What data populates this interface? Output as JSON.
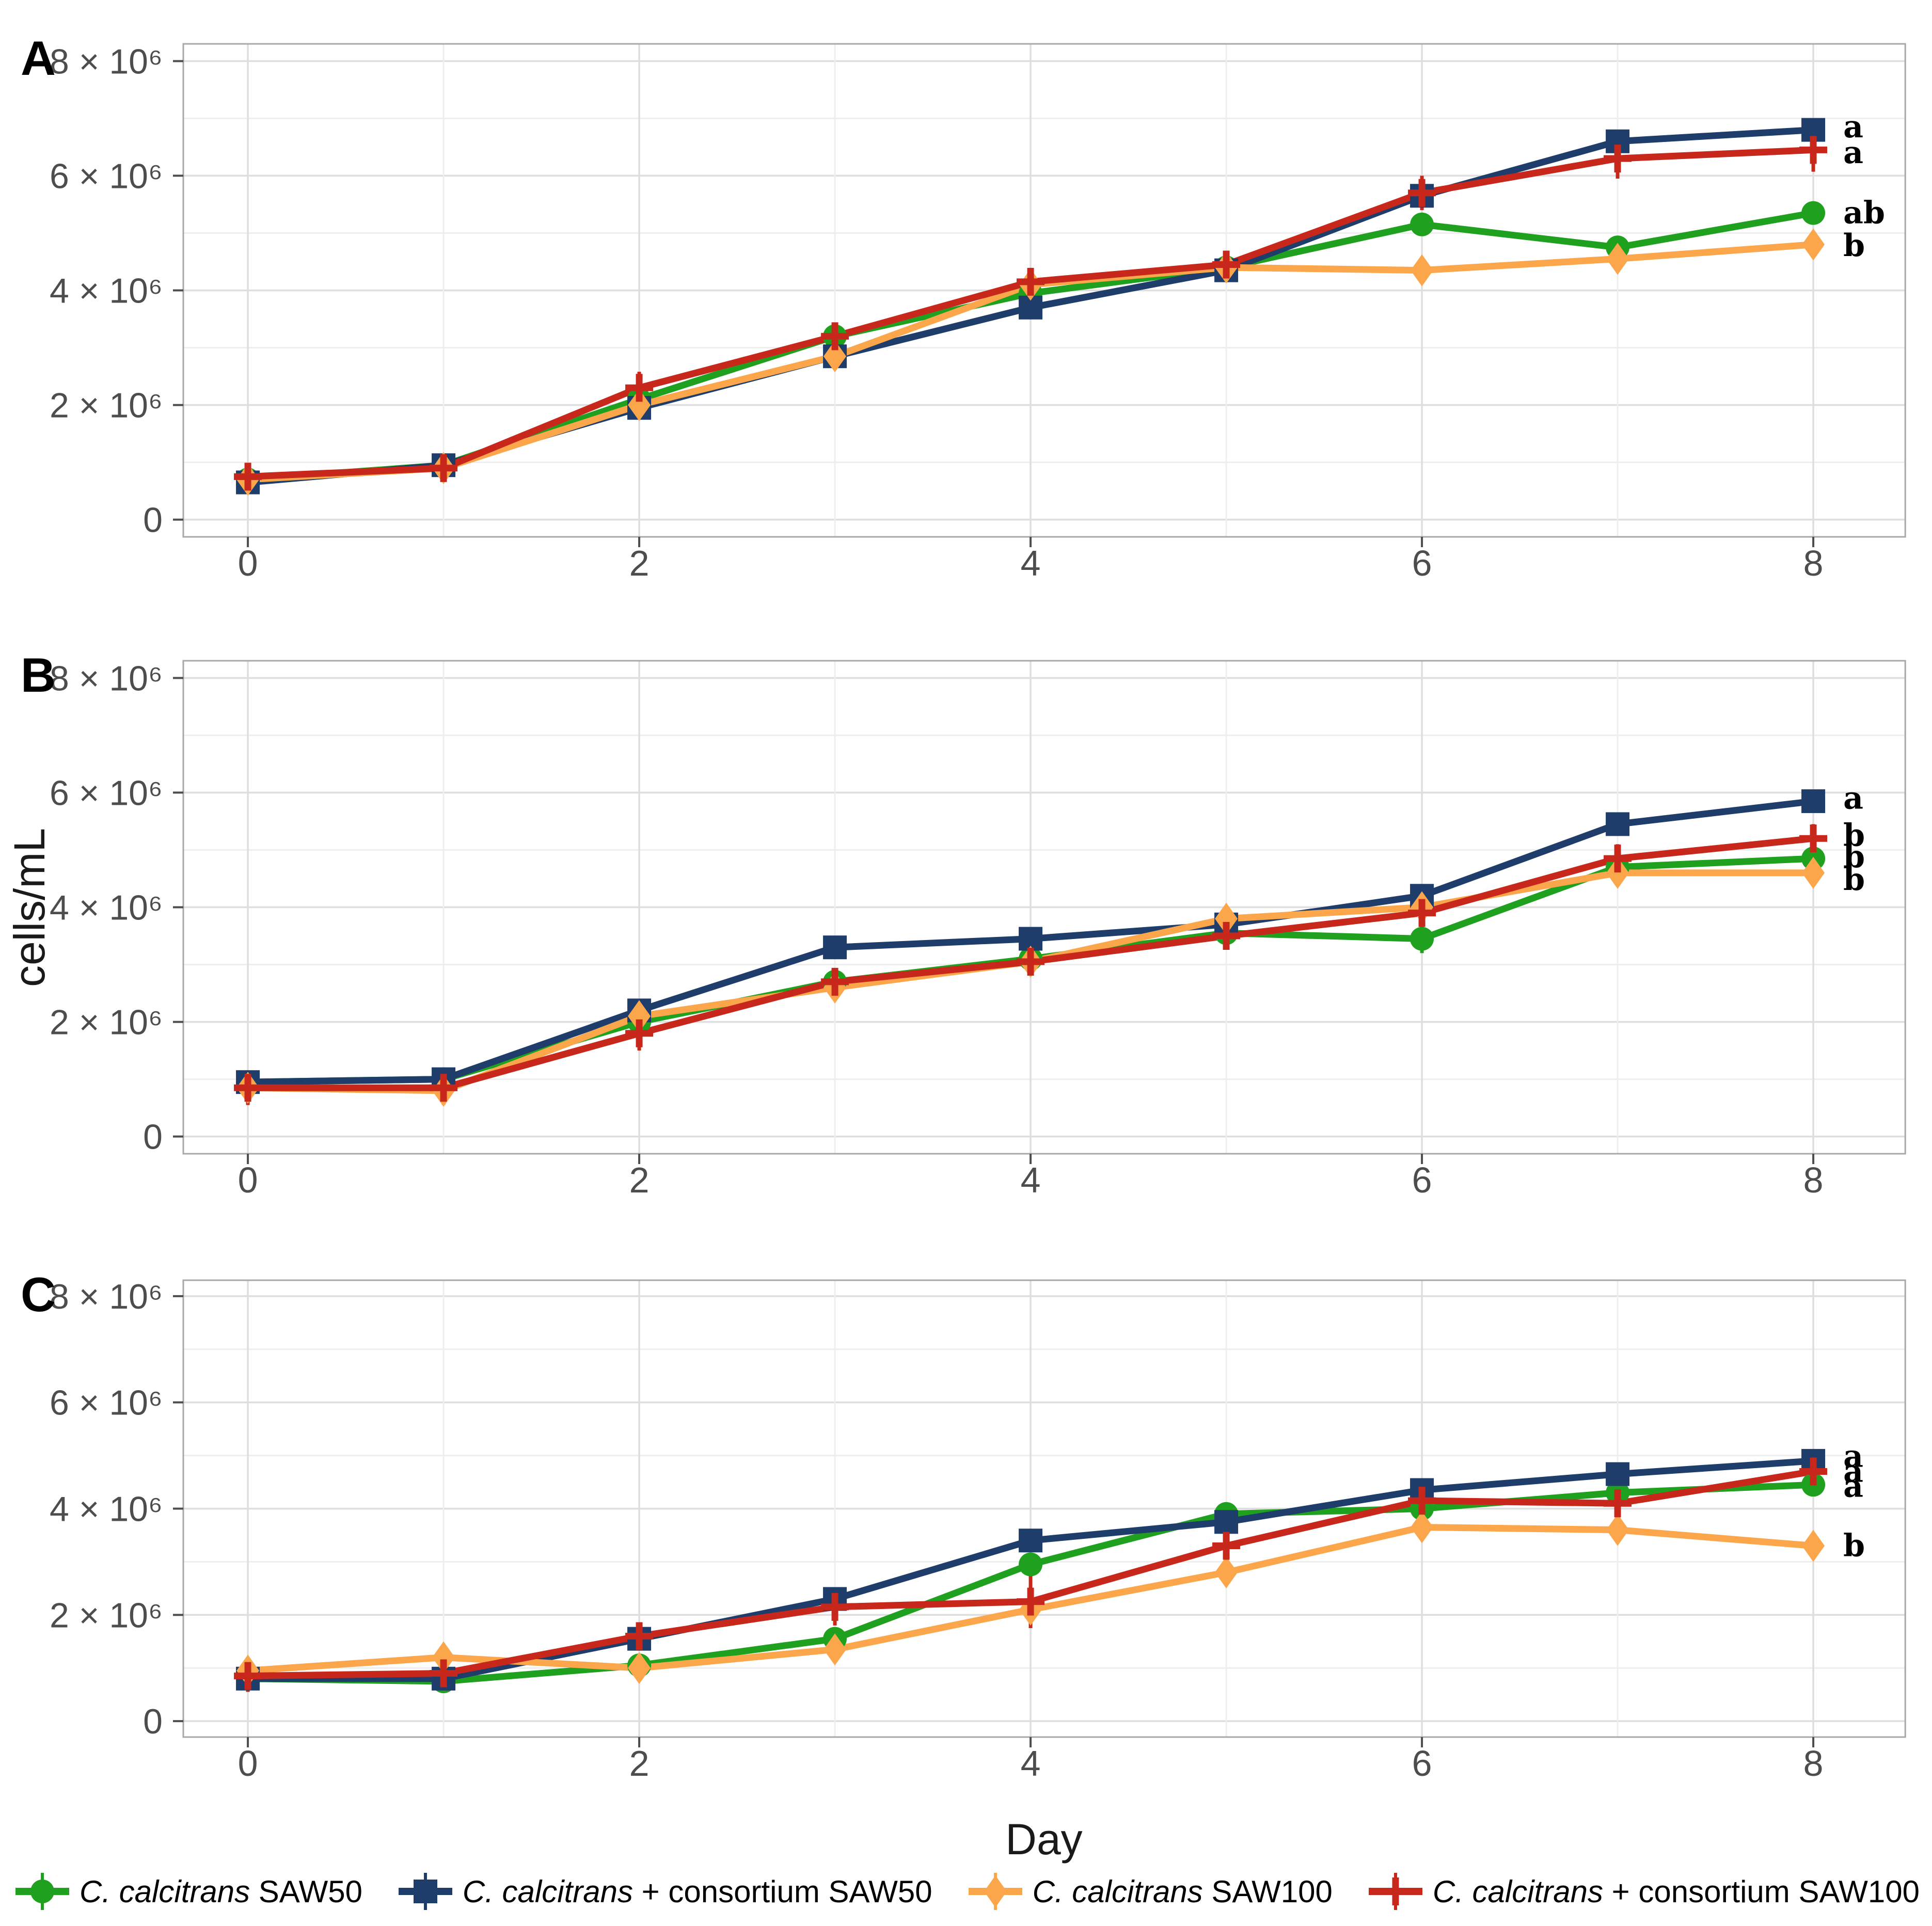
{
  "x_axis": {
    "label": "Day",
    "tick_labels": [
      "0",
      "2",
      "4",
      "6",
      "8"
    ],
    "tick_values": [
      0,
      2,
      4,
      6,
      8
    ],
    "minor_tick_values": [
      1,
      3,
      5,
      7
    ],
    "range": [
      0,
      8
    ]
  },
  "y_axis": {
    "label": "cells/mL",
    "tick_labels": [
      "0",
      "2 × 10⁶",
      "4 × 10⁶",
      "6 × 10⁶",
      "8 × 10⁶"
    ],
    "tick_values": [
      0,
      2000000,
      4000000,
      6000000,
      8000000
    ],
    "minor_tick_values": [
      1000000,
      3000000,
      5000000,
      7000000
    ],
    "range": [
      0,
      8000000
    ]
  },
  "colors": {
    "green": "#1fa11f",
    "navy": "#1e3d6b",
    "orange": "#fca64c",
    "red": "#c8271c",
    "grid_major": "#dedede",
    "grid_minor": "#eeeeee",
    "panel_border": "#a8a8a8",
    "tick_text": "#4d4d4d"
  },
  "legend": [
    {
      "italic": "C. calcitrans",
      "rest": " SAW50",
      "color": "#1fa11f",
      "marker": "circle"
    },
    {
      "italic": "C. calcitrans",
      "rest": " + consortium SAW50",
      "color": "#1e3d6b",
      "marker": "square"
    },
    {
      "italic": "C. calcitrans",
      "rest": " SAW100",
      "color": "#fca64c",
      "marker": "diamond"
    },
    {
      "italic": "C. calcitrans",
      "rest": " + consortium SAW100",
      "color": "#c8271c",
      "marker": "plus"
    }
  ],
  "chart_data": [
    {
      "type": "line",
      "panel_label": "A",
      "x": [
        0,
        1,
        2,
        3,
        4,
        5,
        6,
        7,
        8
      ],
      "xlabel": "Day",
      "ylabel": "cells/mL",
      "ylim": [
        0,
        8000000
      ],
      "series": [
        {
          "name": "C. calcitrans SAW50",
          "marker": "circle",
          "color": "#1fa11f",
          "values": [
            700000,
            950000,
            2100000,
            3200000,
            3950000,
            4400000,
            5150000,
            4750000,
            5350000
          ],
          "err": [
            80000,
            60000,
            60000,
            120000,
            150000,
            60000,
            60000,
            60000,
            80000
          ],
          "end_label": "ab",
          "end_label_y": 5350000
        },
        {
          "name": "C. calcitrans + consortium SAW50",
          "marker": "square",
          "color": "#1e3d6b",
          "values": [
            650000,
            950000,
            1950000,
            2850000,
            3700000,
            4350000,
            5650000,
            6600000,
            6800000
          ],
          "err": [
            60000,
            100000,
            60000,
            60000,
            60000,
            60000,
            60000,
            60000,
            60000
          ],
          "end_label": "a",
          "end_label_y": 6850000
        },
        {
          "name": "C. calcitrans SAW100",
          "marker": "diamond",
          "color": "#fca64c",
          "values": [
            700000,
            900000,
            2000000,
            2850000,
            4100000,
            4400000,
            4350000,
            4550000,
            4800000
          ],
          "err": [
            120000,
            100000,
            100000,
            60000,
            150000,
            120000,
            60000,
            60000,
            60000
          ],
          "end_label": "b",
          "end_label_y": 4780000
        },
        {
          "name": "C. calcitrans + consortium SAW100",
          "marker": "plus",
          "color": "#c8271c",
          "values": [
            750000,
            900000,
            2300000,
            3200000,
            4150000,
            4450000,
            5700000,
            6300000,
            6450000
          ],
          "err": [
            150000,
            200000,
            280000,
            100000,
            150000,
            150000,
            300000,
            350000,
            380000
          ],
          "end_label": "a",
          "end_label_y": 6400000
        }
      ]
    },
    {
      "type": "line",
      "panel_label": "B",
      "x": [
        0,
        1,
        2,
        3,
        4,
        5,
        6,
        7,
        8
      ],
      "xlabel": "Day",
      "ylabel": "cells/mL",
      "ylim": [
        0,
        8000000
      ],
      "series": [
        {
          "name": "C. calcitrans SAW50",
          "marker": "circle",
          "color": "#1fa11f",
          "values": [
            950000,
            1000000,
            2000000,
            2700000,
            3100000,
            3550000,
            3450000,
            4700000,
            4850000
          ],
          "err": [
            60000,
            60000,
            100000,
            150000,
            100000,
            100000,
            250000,
            120000,
            100000
          ],
          "end_label": "b",
          "end_label_y": 4880000
        },
        {
          "name": "C. calcitrans + consortium SAW50",
          "marker": "square",
          "color": "#1e3d6b",
          "values": [
            950000,
            1000000,
            2200000,
            3300000,
            3450000,
            3700000,
            4200000,
            5450000,
            5850000
          ],
          "err": [
            60000,
            60000,
            60000,
            60000,
            60000,
            60000,
            60000,
            60000,
            60000
          ],
          "end_label": "a",
          "end_label_y": 5900000
        },
        {
          "name": "C. calcitrans SAW100",
          "marker": "diamond",
          "color": "#fca64c",
          "values": [
            850000,
            800000,
            2100000,
            2600000,
            3050000,
            3800000,
            4000000,
            4600000,
            4600000
          ],
          "err": [
            100000,
            250000,
            100000,
            150000,
            100000,
            100000,
            200000,
            100000,
            100000
          ],
          "end_label": "b",
          "end_label_y": 4480000
        },
        {
          "name": "C. calcitrans + consortium SAW100",
          "marker": "plus",
          "color": "#c8271c",
          "values": [
            850000,
            850000,
            1800000,
            2700000,
            3050000,
            3500000,
            3900000,
            4850000,
            5200000
          ],
          "err": [
            300000,
            150000,
            300000,
            100000,
            200000,
            100000,
            350000,
            250000,
            250000
          ],
          "end_label": "b",
          "end_label_y": 5250000
        }
      ]
    },
    {
      "type": "line",
      "panel_label": "C",
      "x": [
        0,
        1,
        2,
        3,
        4,
        5,
        6,
        7,
        8
      ],
      "xlabel": "Day",
      "ylabel": "cells/mL",
      "ylim": [
        0,
        8000000
      ],
      "series": [
        {
          "name": "C. calcitrans SAW50",
          "marker": "circle",
          "color": "#1fa11f",
          "values": [
            800000,
            750000,
            1050000,
            1550000,
            2950000,
            3900000,
            4000000,
            4300000,
            4450000
          ],
          "err": [
            100000,
            100000,
            100000,
            100000,
            100000,
            100000,
            100000,
            100000,
            100000
          ],
          "end_label": "a",
          "end_label_y": 4420000
        },
        {
          "name": "C. calcitrans + consortium SAW50",
          "marker": "square",
          "color": "#1e3d6b",
          "values": [
            800000,
            800000,
            1550000,
            2300000,
            3400000,
            3750000,
            4350000,
            4650000,
            4900000
          ],
          "err": [
            60000,
            60000,
            60000,
            60000,
            60000,
            60000,
            150000,
            60000,
            60000
          ],
          "end_label": "a",
          "end_label_y": 4980000
        },
        {
          "name": "C. calcitrans SAW100",
          "marker": "diamond",
          "color": "#fca64c",
          "values": [
            950000,
            1200000,
            1000000,
            1350000,
            2100000,
            2800000,
            3650000,
            3600000,
            3300000
          ],
          "err": [
            100000,
            150000,
            200000,
            150000,
            150000,
            100000,
            100000,
            100000,
            100000
          ],
          "end_label": "b",
          "end_label_y": 3300000
        },
        {
          "name": "C. calcitrans + consortium SAW100",
          "marker": "plus",
          "color": "#c8271c",
          "values": [
            850000,
            900000,
            1600000,
            2150000,
            2250000,
            3300000,
            4150000,
            4100000,
            4700000
          ],
          "err": [
            300000,
            200000,
            250000,
            350000,
            500000,
            300000,
            200000,
            450000,
            300000
          ],
          "end_label": "a",
          "end_label_y": 4700000
        }
      ]
    }
  ]
}
